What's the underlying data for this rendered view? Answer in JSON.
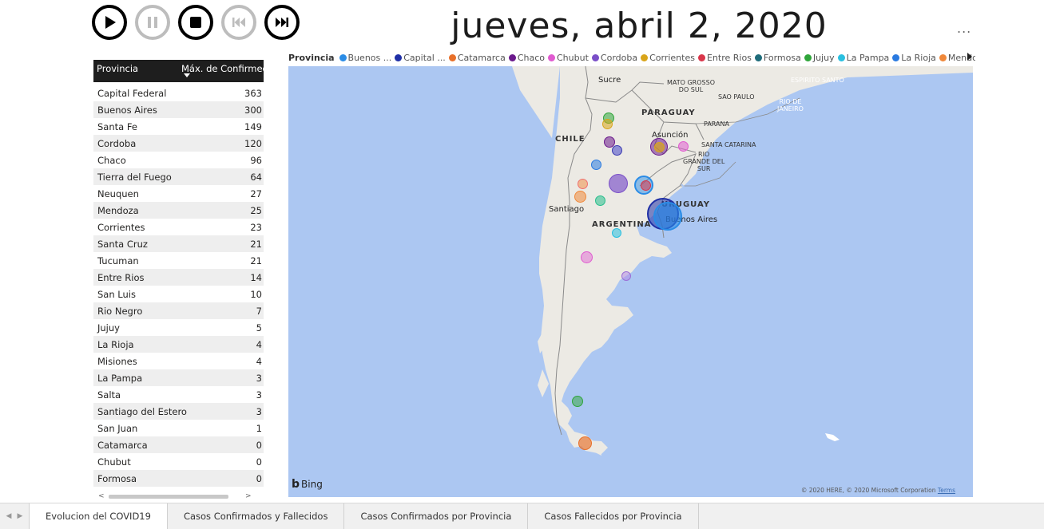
{
  "controls": [
    {
      "name": "play-button",
      "icon": "play-icon",
      "enabled": true
    },
    {
      "name": "pause-button",
      "icon": "pause-icon",
      "enabled": false
    },
    {
      "name": "stop-button",
      "icon": "stop-icon",
      "enabled": true
    },
    {
      "name": "previous-button",
      "icon": "skip-back-icon",
      "enabled": false
    },
    {
      "name": "next-button",
      "icon": "skip-forward-icon",
      "enabled": true
    }
  ],
  "date_title": "jueves, abril 2, 2020",
  "more_menu": "...",
  "table": {
    "header_col1": "Provincia",
    "header_col2": "Máx. de Confirmed",
    "rows": [
      {
        "provincia": "Capital Federal",
        "value": "363"
      },
      {
        "provincia": "Buenos Aires",
        "value": "300"
      },
      {
        "provincia": "Santa Fe",
        "value": "149"
      },
      {
        "provincia": "Cordoba",
        "value": "120"
      },
      {
        "provincia": "Chaco",
        "value": "96"
      },
      {
        "provincia": "Tierra del Fuego",
        "value": "64"
      },
      {
        "provincia": "Neuquen",
        "value": "27"
      },
      {
        "provincia": "Mendoza",
        "value": "25"
      },
      {
        "provincia": "Corrientes",
        "value": "23"
      },
      {
        "provincia": "Santa Cruz",
        "value": "21"
      },
      {
        "provincia": "Tucuman",
        "value": "21"
      },
      {
        "provincia": "Entre Rios",
        "value": "14"
      },
      {
        "provincia": "San Luis",
        "value": "10"
      },
      {
        "provincia": "Rio Negro",
        "value": "7"
      },
      {
        "provincia": "Jujuy",
        "value": "5"
      },
      {
        "provincia": "La Rioja",
        "value": "4"
      },
      {
        "provincia": "Misiones",
        "value": "4"
      },
      {
        "provincia": "La Pampa",
        "value": "3"
      },
      {
        "provincia": "Salta",
        "value": "3"
      },
      {
        "provincia": "Santiago del Estero",
        "value": "3"
      },
      {
        "provincia": "San Juan",
        "value": "1"
      },
      {
        "provincia": "Catamarca",
        "value": "0"
      },
      {
        "provincia": "Chubut",
        "value": "0"
      },
      {
        "provincia": "Formosa",
        "value": "0"
      }
    ]
  },
  "legend": {
    "title": "Provincia",
    "items": [
      {
        "label": "Buenos ...",
        "color": "#2a8ce6"
      },
      {
        "label": "Capital ...",
        "color": "#1f2fa6"
      },
      {
        "label": "Catamarca",
        "color": "#e8702a"
      },
      {
        "label": "Chaco",
        "color": "#6b1a8c"
      },
      {
        "label": "Chubut",
        "color": "#e05bd0"
      },
      {
        "label": "Cordoba",
        "color": "#7a4fc8"
      },
      {
        "label": "Corrientes",
        "color": "#d9a51a"
      },
      {
        "label": "Entre Rios",
        "color": "#d9364a"
      },
      {
        "label": "Formosa",
        "color": "#1f6c7a"
      },
      {
        "label": "Jujuy",
        "color": "#2fa53a"
      },
      {
        "label": "La Pampa",
        "color": "#2ac0e0"
      },
      {
        "label": "La Rioja",
        "color": "#2a7ae0"
      },
      {
        "label": "Mendoza",
        "color": "#f0883a"
      }
    ]
  },
  "map": {
    "labels": [
      {
        "text": "Sucre"
      },
      {
        "text": "MATO GROSSO\nDO SUL"
      },
      {
        "text": "SAO PAULO"
      },
      {
        "text": "ESPIRITO SANTO"
      },
      {
        "text": "RIO DE\nJANEIRO"
      },
      {
        "text": "PARAGUAY"
      },
      {
        "text": "PARANA"
      },
      {
        "text": "CHILE"
      },
      {
        "text": "Asunción"
      },
      {
        "text": "SANTA CATARINA"
      },
      {
        "text": "RIO\nGRANDE DEL\nSUR"
      },
      {
        "text": "URUGUAY"
      },
      {
        "text": "Santiago"
      },
      {
        "text": "ARGENTINA"
      },
      {
        "text": "Buenos Aires"
      }
    ],
    "attribution": "Bing",
    "copyright": "© 2020 HERE, © 2020 Microsoft Corporation",
    "terms": "Terms"
  },
  "tabs": [
    {
      "label": "Evolucion del COVID19",
      "active": true
    },
    {
      "label": "Casos Confirmados y Fallecidos",
      "active": false
    },
    {
      "label": "Casos Confirmados por Provincia",
      "active": false
    },
    {
      "label": "Casos Fallecidos por Provincia",
      "active": false
    }
  ]
}
